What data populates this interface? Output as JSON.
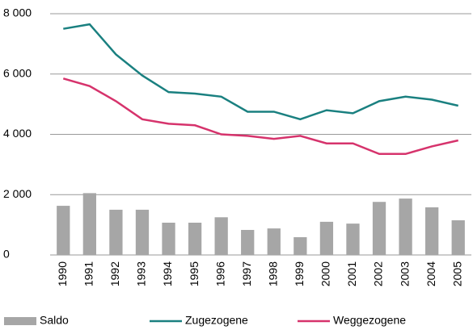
{
  "chart_data": {
    "type": "bar",
    "categories": [
      "1990",
      "1991",
      "1992",
      "1993",
      "1994",
      "1995",
      "1996",
      "1997",
      "1998",
      "1999",
      "2000",
      "2001",
      "2002",
      "2003",
      "2004",
      "2005"
    ],
    "series": [
      {
        "name": "Saldo",
        "type": "bar",
        "color": "#a6a6a6",
        "values": [
          1630,
          2050,
          1500,
          1500,
          1070,
          1070,
          1250,
          830,
          880,
          590,
          1100,
          1040,
          1760,
          1870,
          1580,
          1150
        ]
      },
      {
        "name": "Zugezogene",
        "type": "line",
        "color": "#1a8080",
        "values": [
          7500,
          7650,
          6650,
          5950,
          5400,
          5350,
          5250,
          4750,
          4750,
          4500,
          4800,
          4700,
          5100,
          5250,
          5150,
          4950
        ]
      },
      {
        "name": "Weggezogene",
        "type": "line",
        "color": "#d6336c",
        "values": [
          5850,
          5600,
          5100,
          4500,
          4350,
          4300,
          4000,
          3950,
          3850,
          3950,
          3700,
          3700,
          3350,
          3350,
          3600,
          3800
        ]
      }
    ],
    "ylim": [
      0,
      8000
    ],
    "yticks": [
      {
        "value": 0,
        "label": "0"
      },
      {
        "value": 2000,
        "label": "2 000"
      },
      {
        "value": 4000,
        "label": "4 000"
      },
      {
        "value": 6000,
        "label": "6 000"
      },
      {
        "value": 8000,
        "label": "8 000"
      }
    ],
    "grid": true
  }
}
